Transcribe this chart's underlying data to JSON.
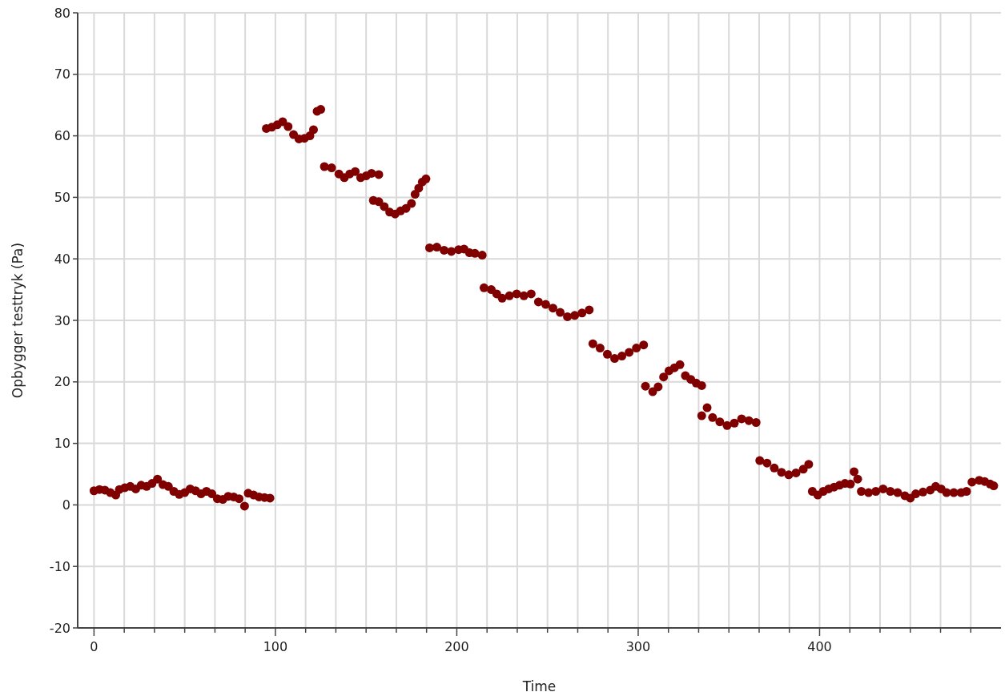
{
  "chart_data": {
    "type": "scatter",
    "xlabel": "Time",
    "ylabel": "Opbygger testtryk (Pa)",
    "xlim": [
      -9,
      500
    ],
    "ylim": [
      -20,
      80
    ],
    "xticks": [
      0,
      {
        "value": 16.67,
        "label": null
      },
      {
        "value": 33.33,
        "label": null
      },
      {
        "value": 50,
        "label": null
      },
      {
        "value": 66.67,
        "label": null
      },
      {
        "value": 83.33,
        "label": null
      },
      100,
      {
        "value": 116.67,
        "label": null
      },
      {
        "value": 133.33,
        "label": null
      },
      {
        "value": 150,
        "label": null
      },
      {
        "value": 166.67,
        "label": null
      },
      {
        "value": 183.33,
        "label": null
      },
      200,
      {
        "value": 216.67,
        "label": null
      },
      {
        "value": 233.33,
        "label": null
      },
      {
        "value": 250,
        "label": null
      },
      {
        "value": 266.67,
        "label": null
      },
      {
        "value": 283.33,
        "label": null
      },
      300,
      {
        "value": 316.67,
        "label": null
      },
      {
        "value": 333.33,
        "label": null
      },
      {
        "value": 350,
        "label": null
      },
      {
        "value": 366.67,
        "label": null
      },
      {
        "value": 383.33,
        "label": null
      },
      400,
      {
        "value": 416.67,
        "label": null
      },
      {
        "value": 433.33,
        "label": null
      },
      {
        "value": 450,
        "label": null
      },
      {
        "value": 466.67,
        "label": null
      },
      {
        "value": 483.33,
        "label": null
      }
    ],
    "yticks": [
      -20,
      -10,
      0,
      10,
      20,
      30,
      40,
      50,
      60,
      70,
      80
    ],
    "grid": true,
    "marker": "circle",
    "series": [
      {
        "color": "#800000",
        "x": [
          0,
          3,
          6,
          9,
          12,
          14,
          17,
          20,
          23,
          26,
          29,
          32,
          35,
          38,
          41,
          44,
          47,
          50,
          53,
          56,
          59,
          62,
          65,
          68,
          71,
          74,
          77,
          80,
          83,
          85,
          88,
          91,
          94,
          97,
          95,
          98,
          101,
          104,
          107,
          110,
          113,
          116,
          119,
          121,
          123,
          125,
          127,
          131,
          135,
          138,
          141,
          144,
          147,
          150,
          153,
          157,
          154,
          157,
          160,
          163,
          166,
          169,
          172,
          175,
          177,
          179,
          181,
          183,
          185,
          189,
          193,
          197,
          201,
          204,
          207,
          210,
          214,
          215,
          219,
          222,
          225,
          229,
          233,
          237,
          241,
          245,
          249,
          253,
          257,
          261,
          265,
          269,
          273,
          275,
          279,
          283,
          287,
          291,
          295,
          299,
          303,
          304,
          308,
          311,
          314,
          317,
          320,
          323,
          326,
          329,
          332,
          335,
          335,
          338,
          341,
          345,
          349,
          353,
          357,
          361,
          365,
          367,
          371,
          375,
          379,
          383,
          387,
          391,
          394,
          396,
          399,
          402,
          405,
          408,
          411,
          414,
          417,
          419,
          421,
          423,
          427,
          431,
          435,
          439,
          443,
          447,
          450,
          453,
          457,
          461,
          464,
          467,
          470,
          474,
          478,
          481,
          484,
          488,
          491,
          494,
          496
        ],
        "values": [
          2.3,
          2.5,
          2.4,
          2.0,
          1.6,
          2.5,
          2.8,
          3.0,
          2.6,
          3.2,
          3.0,
          3.5,
          4.2,
          3.3,
          3.0,
          2.2,
          1.7,
          2.0,
          2.6,
          2.3,
          1.8,
          2.2,
          1.8,
          1.0,
          0.9,
          1.4,
          1.3,
          1.0,
          -0.2,
          1.9,
          1.6,
          1.3,
          1.2,
          1.1,
          61.2,
          61.4,
          61.8,
          62.3,
          61.5,
          60.2,
          59.5,
          59.6,
          60.0,
          61.0,
          64.0,
          64.3,
          55.0,
          54.8,
          53.8,
          53.2,
          53.8,
          54.2,
          53.2,
          53.5,
          53.9,
          53.7,
          49.5,
          49.3,
          48.5,
          47.6,
          47.3,
          47.8,
          48.2,
          49.0,
          50.5,
          51.5,
          52.5,
          53.0,
          41.8,
          41.9,
          41.4,
          41.2,
          41.5,
          41.6,
          41.0,
          40.9,
          40.6,
          35.3,
          35.0,
          34.3,
          33.6,
          34.0,
          34.3,
          34.0,
          34.3,
          33.0,
          32.6,
          32.0,
          31.3,
          30.6,
          30.8,
          31.2,
          31.7,
          26.2,
          25.5,
          24.5,
          23.8,
          24.2,
          24.8,
          25.5,
          26.0,
          19.3,
          18.4,
          19.2,
          20.8,
          21.8,
          22.3,
          22.8,
          21.0,
          20.4,
          19.8,
          19.4,
          14.5,
          15.8,
          14.2,
          13.5,
          12.9,
          13.3,
          14.0,
          13.7,
          13.4,
          7.2,
          6.8,
          6.0,
          5.3,
          4.9,
          5.2,
          5.8,
          6.6,
          2.2,
          1.6,
          2.2,
          2.6,
          2.9,
          3.2,
          3.5,
          3.4,
          5.4,
          4.2,
          2.2,
          2.0,
          2.2,
          2.6,
          2.2,
          2.0,
          1.5,
          1.1,
          1.8,
          2.1,
          2.4,
          3.0,
          2.6,
          2.0,
          2.0,
          2.0,
          2.2,
          3.7,
          4.0,
          3.8,
          3.4,
          3.1
        ]
      }
    ]
  }
}
